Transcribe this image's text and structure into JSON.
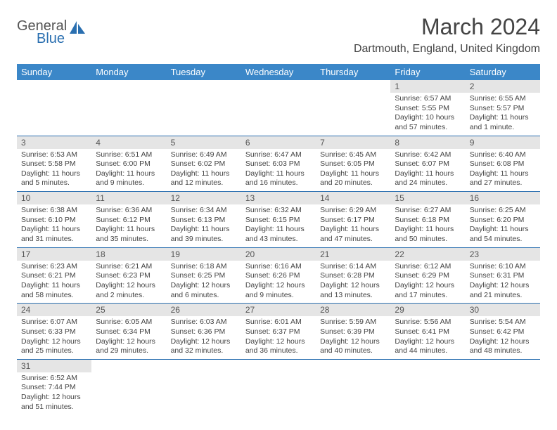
{
  "logo": {
    "top": "General",
    "bottom": "Blue"
  },
  "title": "March 2024",
  "location": "Dartmouth, England, United Kingdom",
  "colors": {
    "header_bg": "#3b87c8",
    "header_text": "#ffffff",
    "daynum_bg": "#e5e5e5",
    "border": "#2a6fb0",
    "text": "#444444"
  },
  "weekdays": [
    "Sunday",
    "Monday",
    "Tuesday",
    "Wednesday",
    "Thursday",
    "Friday",
    "Saturday"
  ],
  "grid": [
    [
      null,
      null,
      null,
      null,
      null,
      {
        "n": "1",
        "sr": "Sunrise: 6:57 AM",
        "ss": "Sunset: 5:55 PM",
        "dl": "Daylight: 10 hours and 57 minutes."
      },
      {
        "n": "2",
        "sr": "Sunrise: 6:55 AM",
        "ss": "Sunset: 5:57 PM",
        "dl": "Daylight: 11 hours and 1 minute."
      }
    ],
    [
      {
        "n": "3",
        "sr": "Sunrise: 6:53 AM",
        "ss": "Sunset: 5:58 PM",
        "dl": "Daylight: 11 hours and 5 minutes."
      },
      {
        "n": "4",
        "sr": "Sunrise: 6:51 AM",
        "ss": "Sunset: 6:00 PM",
        "dl": "Daylight: 11 hours and 9 minutes."
      },
      {
        "n": "5",
        "sr": "Sunrise: 6:49 AM",
        "ss": "Sunset: 6:02 PM",
        "dl": "Daylight: 11 hours and 12 minutes."
      },
      {
        "n": "6",
        "sr": "Sunrise: 6:47 AM",
        "ss": "Sunset: 6:03 PM",
        "dl": "Daylight: 11 hours and 16 minutes."
      },
      {
        "n": "7",
        "sr": "Sunrise: 6:45 AM",
        "ss": "Sunset: 6:05 PM",
        "dl": "Daylight: 11 hours and 20 minutes."
      },
      {
        "n": "8",
        "sr": "Sunrise: 6:42 AM",
        "ss": "Sunset: 6:07 PM",
        "dl": "Daylight: 11 hours and 24 minutes."
      },
      {
        "n": "9",
        "sr": "Sunrise: 6:40 AM",
        "ss": "Sunset: 6:08 PM",
        "dl": "Daylight: 11 hours and 27 minutes."
      }
    ],
    [
      {
        "n": "10",
        "sr": "Sunrise: 6:38 AM",
        "ss": "Sunset: 6:10 PM",
        "dl": "Daylight: 11 hours and 31 minutes."
      },
      {
        "n": "11",
        "sr": "Sunrise: 6:36 AM",
        "ss": "Sunset: 6:12 PM",
        "dl": "Daylight: 11 hours and 35 minutes."
      },
      {
        "n": "12",
        "sr": "Sunrise: 6:34 AM",
        "ss": "Sunset: 6:13 PM",
        "dl": "Daylight: 11 hours and 39 minutes."
      },
      {
        "n": "13",
        "sr": "Sunrise: 6:32 AM",
        "ss": "Sunset: 6:15 PM",
        "dl": "Daylight: 11 hours and 43 minutes."
      },
      {
        "n": "14",
        "sr": "Sunrise: 6:29 AM",
        "ss": "Sunset: 6:17 PM",
        "dl": "Daylight: 11 hours and 47 minutes."
      },
      {
        "n": "15",
        "sr": "Sunrise: 6:27 AM",
        "ss": "Sunset: 6:18 PM",
        "dl": "Daylight: 11 hours and 50 minutes."
      },
      {
        "n": "16",
        "sr": "Sunrise: 6:25 AM",
        "ss": "Sunset: 6:20 PM",
        "dl": "Daylight: 11 hours and 54 minutes."
      }
    ],
    [
      {
        "n": "17",
        "sr": "Sunrise: 6:23 AM",
        "ss": "Sunset: 6:21 PM",
        "dl": "Daylight: 11 hours and 58 minutes."
      },
      {
        "n": "18",
        "sr": "Sunrise: 6:21 AM",
        "ss": "Sunset: 6:23 PM",
        "dl": "Daylight: 12 hours and 2 minutes."
      },
      {
        "n": "19",
        "sr": "Sunrise: 6:18 AM",
        "ss": "Sunset: 6:25 PM",
        "dl": "Daylight: 12 hours and 6 minutes."
      },
      {
        "n": "20",
        "sr": "Sunrise: 6:16 AM",
        "ss": "Sunset: 6:26 PM",
        "dl": "Daylight: 12 hours and 9 minutes."
      },
      {
        "n": "21",
        "sr": "Sunrise: 6:14 AM",
        "ss": "Sunset: 6:28 PM",
        "dl": "Daylight: 12 hours and 13 minutes."
      },
      {
        "n": "22",
        "sr": "Sunrise: 6:12 AM",
        "ss": "Sunset: 6:29 PM",
        "dl": "Daylight: 12 hours and 17 minutes."
      },
      {
        "n": "23",
        "sr": "Sunrise: 6:10 AM",
        "ss": "Sunset: 6:31 PM",
        "dl": "Daylight: 12 hours and 21 minutes."
      }
    ],
    [
      {
        "n": "24",
        "sr": "Sunrise: 6:07 AM",
        "ss": "Sunset: 6:33 PM",
        "dl": "Daylight: 12 hours and 25 minutes."
      },
      {
        "n": "25",
        "sr": "Sunrise: 6:05 AM",
        "ss": "Sunset: 6:34 PM",
        "dl": "Daylight: 12 hours and 29 minutes."
      },
      {
        "n": "26",
        "sr": "Sunrise: 6:03 AM",
        "ss": "Sunset: 6:36 PM",
        "dl": "Daylight: 12 hours and 32 minutes."
      },
      {
        "n": "27",
        "sr": "Sunrise: 6:01 AM",
        "ss": "Sunset: 6:37 PM",
        "dl": "Daylight: 12 hours and 36 minutes."
      },
      {
        "n": "28",
        "sr": "Sunrise: 5:59 AM",
        "ss": "Sunset: 6:39 PM",
        "dl": "Daylight: 12 hours and 40 minutes."
      },
      {
        "n": "29",
        "sr": "Sunrise: 5:56 AM",
        "ss": "Sunset: 6:41 PM",
        "dl": "Daylight: 12 hours and 44 minutes."
      },
      {
        "n": "30",
        "sr": "Sunrise: 5:54 AM",
        "ss": "Sunset: 6:42 PM",
        "dl": "Daylight: 12 hours and 48 minutes."
      }
    ],
    [
      {
        "n": "31",
        "sr": "Sunrise: 6:52 AM",
        "ss": "Sunset: 7:44 PM",
        "dl": "Daylight: 12 hours and 51 minutes."
      },
      null,
      null,
      null,
      null,
      null,
      null
    ]
  ]
}
